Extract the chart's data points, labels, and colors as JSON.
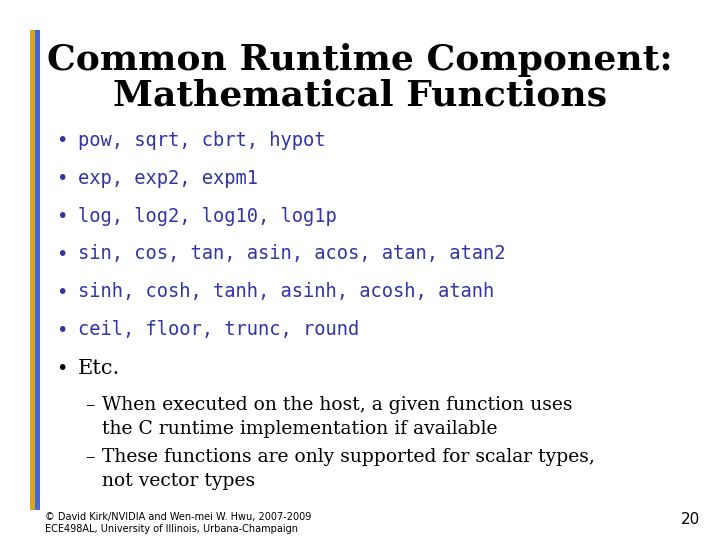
{
  "title_line1": "Common Runtime Component:",
  "title_line2": "Mathematical Functions",
  "title_color": "#000000",
  "title_fontsize": 26,
  "background_color": "#ffffff",
  "bar_gold": "#DAA520",
  "bar_blue": "#4169E1",
  "bullet_items": [
    "pow, sqrt, cbrt, hypot",
    "exp, exp2, expm1",
    "log, log2, log10, log1p",
    "sin, cos, tan, asin, acos, atan, atan2",
    "sinh, cosh, tanh, asinh, acosh, atanh",
    "ceil, floor, trunc, round",
    "Etc."
  ],
  "bullet_color": "#3333AA",
  "bullet_mono_indices": [
    0,
    1,
    2,
    3,
    4,
    5
  ],
  "etc_color": "#000000",
  "sub_items": [
    "When executed on the host, a given function uses\nthe C runtime implementation if available",
    "These functions are only supported for scalar types,\nnot vector types"
  ],
  "sub_color": "#000000",
  "footer_line1": "© David Kirk/NVIDIA and Wen-mei W. Hwu, 2007-2009",
  "footer_line2": "ECE498AL, University of Illinois, Urbana-Champaign",
  "footer_color": "#000000",
  "page_number": "20",
  "bullet_fontsize": 13.5,
  "etc_fontsize": 15,
  "sub_fontsize": 13.5,
  "footer_fontsize": 7
}
